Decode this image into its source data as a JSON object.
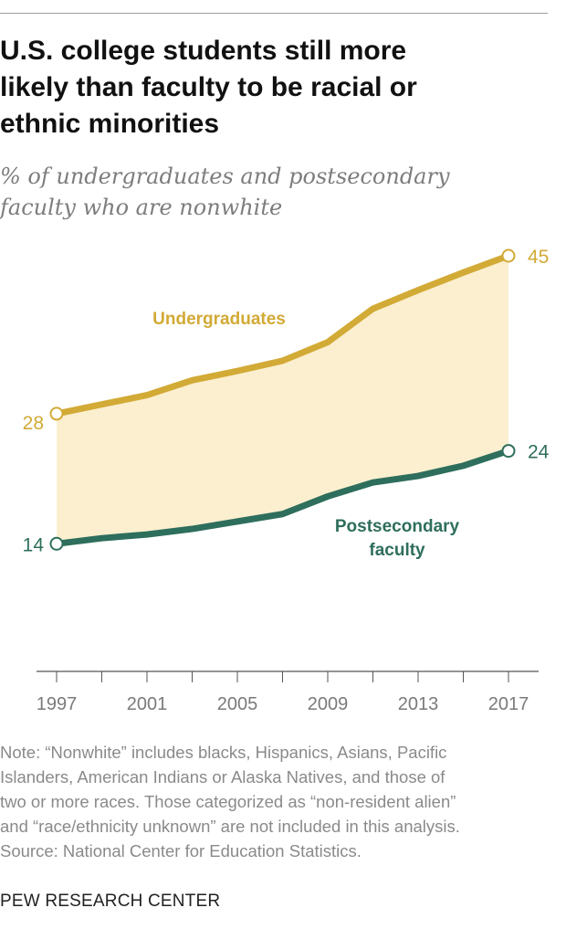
{
  "title_lines": [
    "U.S. college students still more",
    "likely than faculty to be racial or",
    "ethnic minorities"
  ],
  "subtitle_lines": [
    "% of undergraduates and postsecondary",
    "faculty who are nonwhite"
  ],
  "note_lines": [
    "Note: “Nonwhite” includes blacks, Hispanics, Asians, Pacific",
    "Islanders, American Indians or Alaska Natives, and those of",
    "two or more races. Those categorized as “non-resident alien”",
    "and “race/ethnicity unknown” are not included in this analysis.",
    "Source: National Center for Education Statistics."
  ],
  "footer": "PEW RESEARCH CENTER",
  "colors": {
    "undergrad": "#d2aa36",
    "faculty": "#2e6e5c",
    "fill": "#fbefcf",
    "axis": "#555555",
    "tick_label": "#7a7a7a"
  },
  "chart_data": {
    "type": "line",
    "x": [
      1997,
      1999,
      2001,
      2003,
      2005,
      2007,
      2009,
      2011,
      2013,
      2015,
      2017
    ],
    "xticks": [
      "1997",
      "2001",
      "2005",
      "2009",
      "2013",
      "2017"
    ],
    "ylim": [
      0,
      50
    ],
    "grid": false,
    "series": [
      {
        "name": "Undergraduates",
        "label_lines": [
          "Undergraduates"
        ],
        "values": [
          28,
          29,
          30,
          31.6,
          32.6,
          33.7,
          35.7,
          39.3,
          41.3,
          43.2,
          45
        ],
        "start_label": "28",
        "end_label": "45"
      },
      {
        "name": "Postsecondary faculty",
        "label_lines": [
          "Postsecondary",
          "faculty"
        ],
        "values": [
          14,
          14.6,
          15,
          15.6,
          16.4,
          17.2,
          19.1,
          20.6,
          21.3,
          22.4,
          24
        ],
        "start_label": "14",
        "end_label": "24"
      }
    ]
  }
}
